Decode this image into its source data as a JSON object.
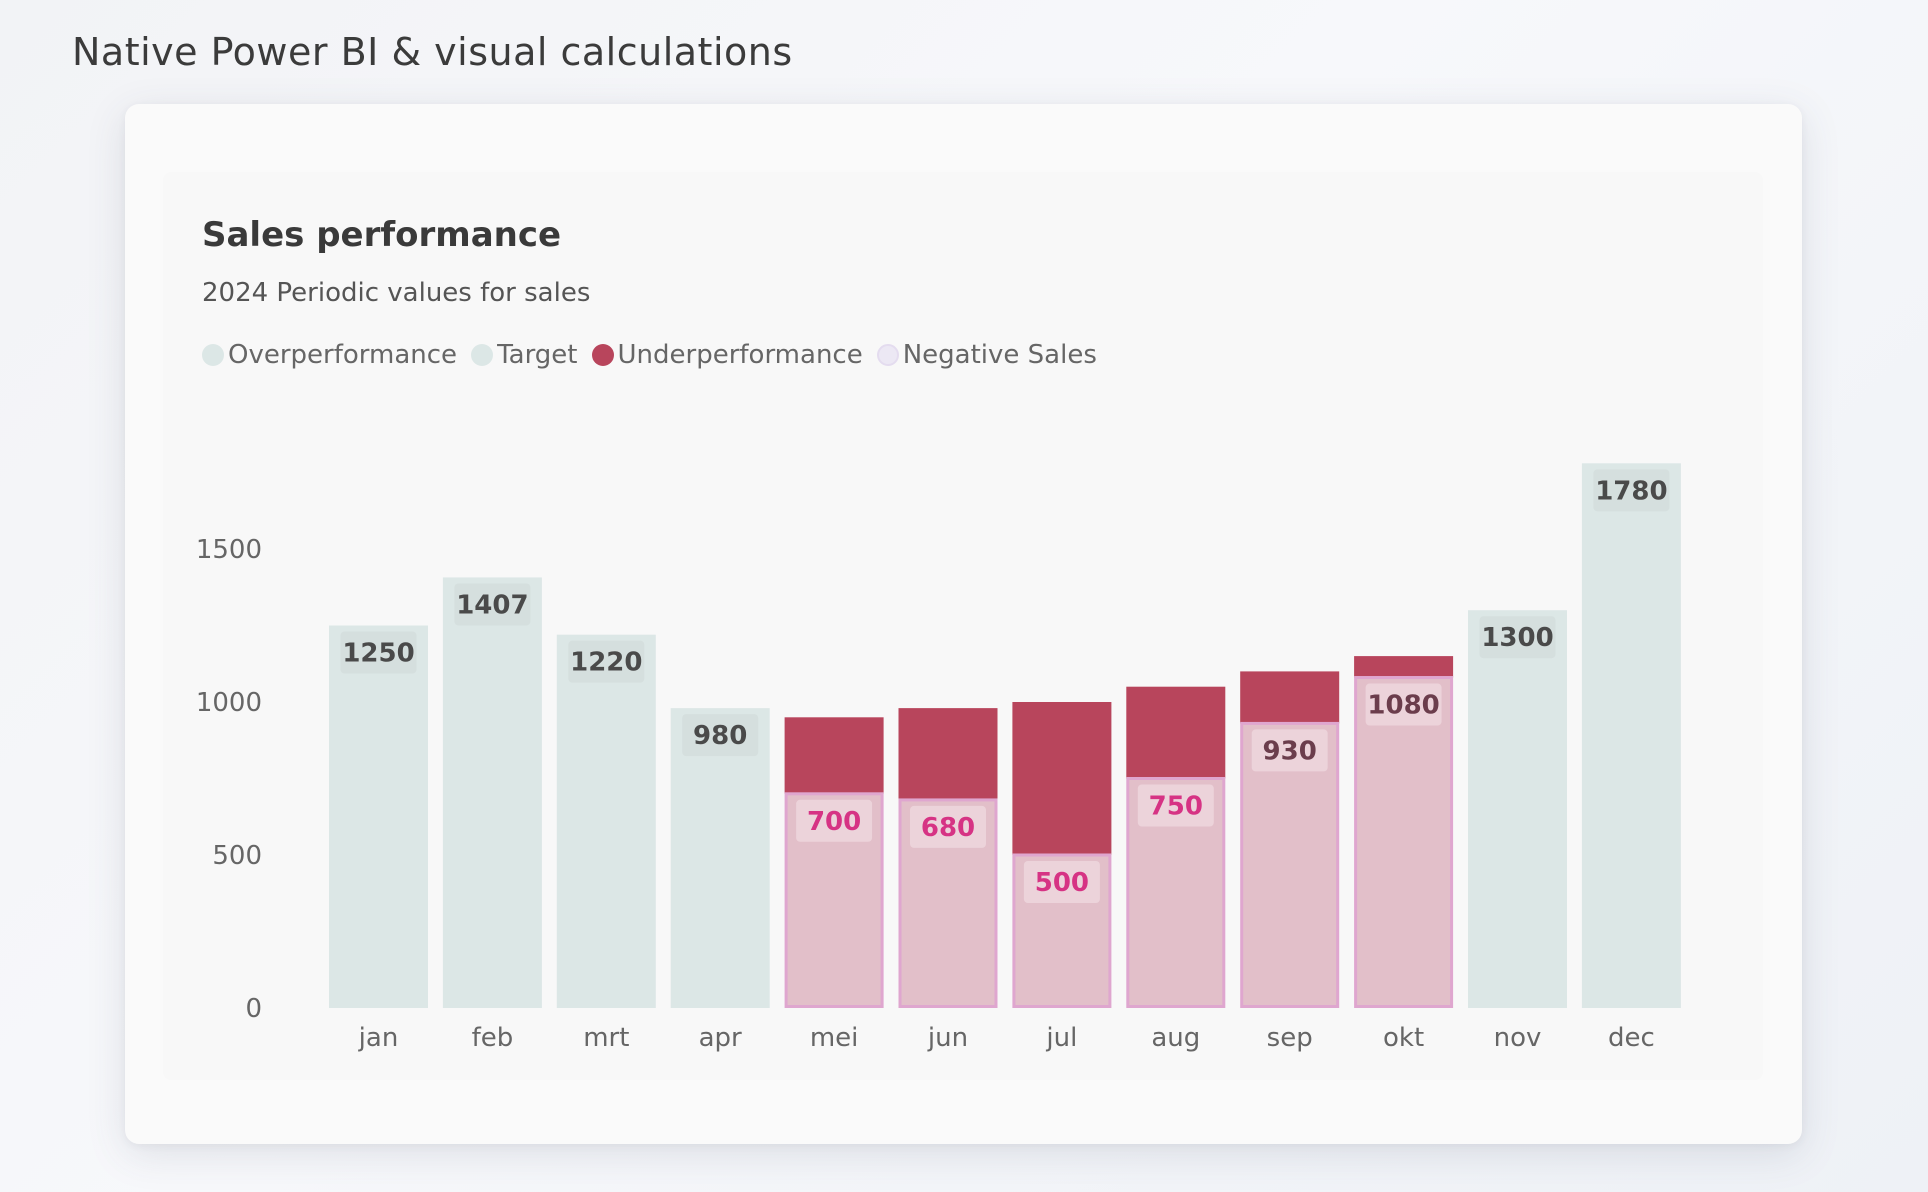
{
  "page": {
    "heading": "Native Power BI & visual calculations"
  },
  "chart_data": {
    "type": "bar",
    "title": "Sales performance",
    "subtitle": "2024 Periodic values for sales",
    "legend": [
      {
        "name": "Overperformance",
        "color": "#dce7e6"
      },
      {
        "name": "Target",
        "color": "#dce7e6"
      },
      {
        "name": "Underperformance",
        "color": "#b8455c"
      },
      {
        "name": "Negative Sales",
        "color": "#ece8f4"
      }
    ],
    "legend_position": "top-left",
    "categories": [
      "jan",
      "feb",
      "mrt",
      "apr",
      "mei",
      "jun",
      "jul",
      "aug",
      "sep",
      "okt",
      "nov",
      "dec"
    ],
    "sales": [
      1250,
      1407,
      1220,
      980,
      700,
      680,
      500,
      750,
      930,
      1080,
      1300,
      1780
    ],
    "target": [
      null,
      null,
      null,
      null,
      950,
      980,
      1000,
      1050,
      1100,
      1150,
      null,
      null
    ],
    "yticks": [
      0,
      500,
      1000,
      1500
    ],
    "ylim": [
      0,
      1800
    ],
    "grid": false,
    "colors": {
      "overperformance": "#dce7e6",
      "underperformance": "#b8455c",
      "sales_below_target": "#e2bfc9",
      "sales_below_target_border": "#dfa6cf",
      "label_bg_over": "#d5dfde",
      "label_bg_under": "#ecd3da",
      "label_over": "#4a4a4a",
      "label_under": "#d63384",
      "label_under_dark": "#6b3d4c",
      "axis_text": "#666666"
    }
  }
}
